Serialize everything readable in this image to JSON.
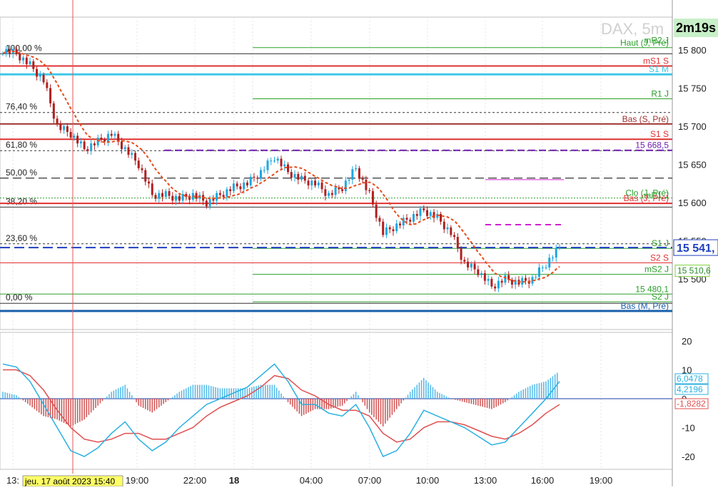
{
  "instrument": "DAX, 5m",
  "countdown": "2m19s",
  "colors": {
    "up": "#1ea7e0",
    "down": "#b02020",
    "green_line": "#2ca02c",
    "red_line": "#e03030",
    "blue_line": "#1e90d0",
    "navy_dash": "#1f3fbf",
    "purple": "#7020b0",
    "magenta": "#d020d0",
    "ma_fast": "#e84a1a",
    "ma_slow": "#7fd13b",
    "macd": "#2ab0e0",
    "signal": "#e05050",
    "hist_pos": "#4fb8e8",
    "hist_neg": "#d05050"
  },
  "chart_data": [
    {
      "type": "line",
      "title": "DAX, 5m",
      "y_ticks": [
        "15 800",
        "15 750",
        "15 700",
        "15 650",
        "15 600",
        "15 550",
        "15 500"
      ],
      "ylim": [
        15450,
        15860
      ],
      "x_ticks": [
        "13:",
        "19:00",
        "22:00",
        "18",
        "04:00",
        "07:00",
        "10:00",
        "13:00",
        "16:00",
        "19:00"
      ],
      "crosshair_label": "jeu. 17 août 2023 15:40",
      "last_price_label": "15 541,",
      "series": [
        {
          "kind": "close",
          "x": [
            "13:00",
            "13:45",
            "14:30",
            "15:15",
            "16:00",
            "16:45",
            "17:30",
            "18:15",
            "19:00",
            "19:45",
            "20:30",
            "21:15",
            "22:00",
            "22:45",
            "23:30",
            "00:15",
            "01:00",
            "01:45",
            "02:30",
            "03:15",
            "04:00",
            "04:45",
            "05:30",
            "06:15",
            "07:00",
            "07:45",
            "08:30",
            "09:00",
            "09:30",
            "10:00",
            "10:45",
            "11:30",
            "12:15",
            "13:00",
            "13:30",
            "14:00",
            "14:30",
            "15:00",
            "15:30",
            "16:00",
            "16:30",
            "17:00"
          ],
          "values": [
            15800,
            15795,
            15780,
            15760,
            15700,
            15690,
            15670,
            15680,
            15690,
            15670,
            15650,
            15610,
            15610,
            15605,
            15610,
            15600,
            15610,
            15620,
            15625,
            15640,
            15660,
            15640,
            15630,
            15625,
            15610,
            15620,
            15645,
            15610,
            15560,
            15570,
            15580,
            15590,
            15580,
            15560,
            15520,
            15510,
            15490,
            15500,
            15495,
            15500,
            15520,
            15541
          ]
        }
      ],
      "fib_levels": [
        {
          "label": "100,00 %",
          "value": 15795
        },
        {
          "label": "76,40 %",
          "value": 15718
        },
        {
          "label": "61,80 %",
          "value": 15668
        },
        {
          "label": "50,00 %",
          "value": 15632
        },
        {
          "label": "38,20 %",
          "value": 15594
        },
        {
          "label": "23,60 %",
          "value": 15546
        },
        {
          "label": "0,00 %",
          "value": 15468
        }
      ],
      "pivot_labels": [
        {
          "label": "Haut (J, Pré)",
          "value": 15803
        },
        {
          "label": "mR2 J",
          "value": 15806
        },
        {
          "label": "mS1 S",
          "value": 15779
        },
        {
          "label": "S1 M",
          "value": 15768
        },
        {
          "label": "R1 J",
          "value": 15736
        },
        {
          "label": "Bas (S, Pré)",
          "value": 15703
        },
        {
          "label": "S1 S",
          "value": 15683
        },
        {
          "label": "15 668,5",
          "value": 15668.5
        },
        {
          "label": "Clo (J, Pré)",
          "value": 15606
        },
        {
          "label": "mR1 J",
          "value": 15603
        },
        {
          "label": "Bas (J, Pré)",
          "value": 15599
        },
        {
          "label": "S1 J",
          "value": 15540
        },
        {
          "label": "S2 S",
          "value": 15521
        },
        {
          "label": "15 510,6",
          "value": 15510.6
        },
        {
          "label": "mS2 J",
          "value": 15506
        },
        {
          "label": "15 480,1",
          "value": 15480.1
        },
        {
          "label": "S2 J",
          "value": 15470
        },
        {
          "label": "Bas (M, Pré)",
          "value": 15458
        }
      ]
    },
    {
      "type": "line",
      "y_ticks": [
        "20",
        "10",
        "0",
        "-10",
        "-20"
      ],
      "ylim": [
        -25,
        23
      ],
      "value_labels": [
        "6,0478",
        "4,2196",
        "-1,8282"
      ],
      "series": [
        {
          "name": "",
          "kind": "macd",
          "values": [
            12,
            11,
            6,
            -2,
            -10,
            -18,
            -20,
            -17,
            -12,
            -8,
            -14,
            -18,
            -15,
            -10,
            -6,
            -2,
            0,
            2,
            4,
            8,
            12,
            6,
            -2,
            -2,
            -5,
            -6,
            -2,
            -10,
            -20,
            -18,
            -12,
            -4,
            -6,
            -8,
            -10,
            -13,
            -16,
            -15,
            -10,
            -5,
            0,
            6
          ]
        },
        {
          "name": "",
          "kind": "signal",
          "values": [
            10,
            10,
            8,
            3,
            -4,
            -10,
            -14,
            -15,
            -14,
            -12,
            -12,
            -14,
            -14,
            -12,
            -10,
            -6,
            -3,
            -1,
            1,
            4,
            8,
            7,
            3,
            1,
            -2,
            -4,
            -4,
            -6,
            -12,
            -15,
            -14,
            -10,
            -8,
            -8,
            -9,
            -11,
            -13,
            -14,
            -12,
            -9,
            -5,
            -2
          ]
        }
      ]
    }
  ]
}
